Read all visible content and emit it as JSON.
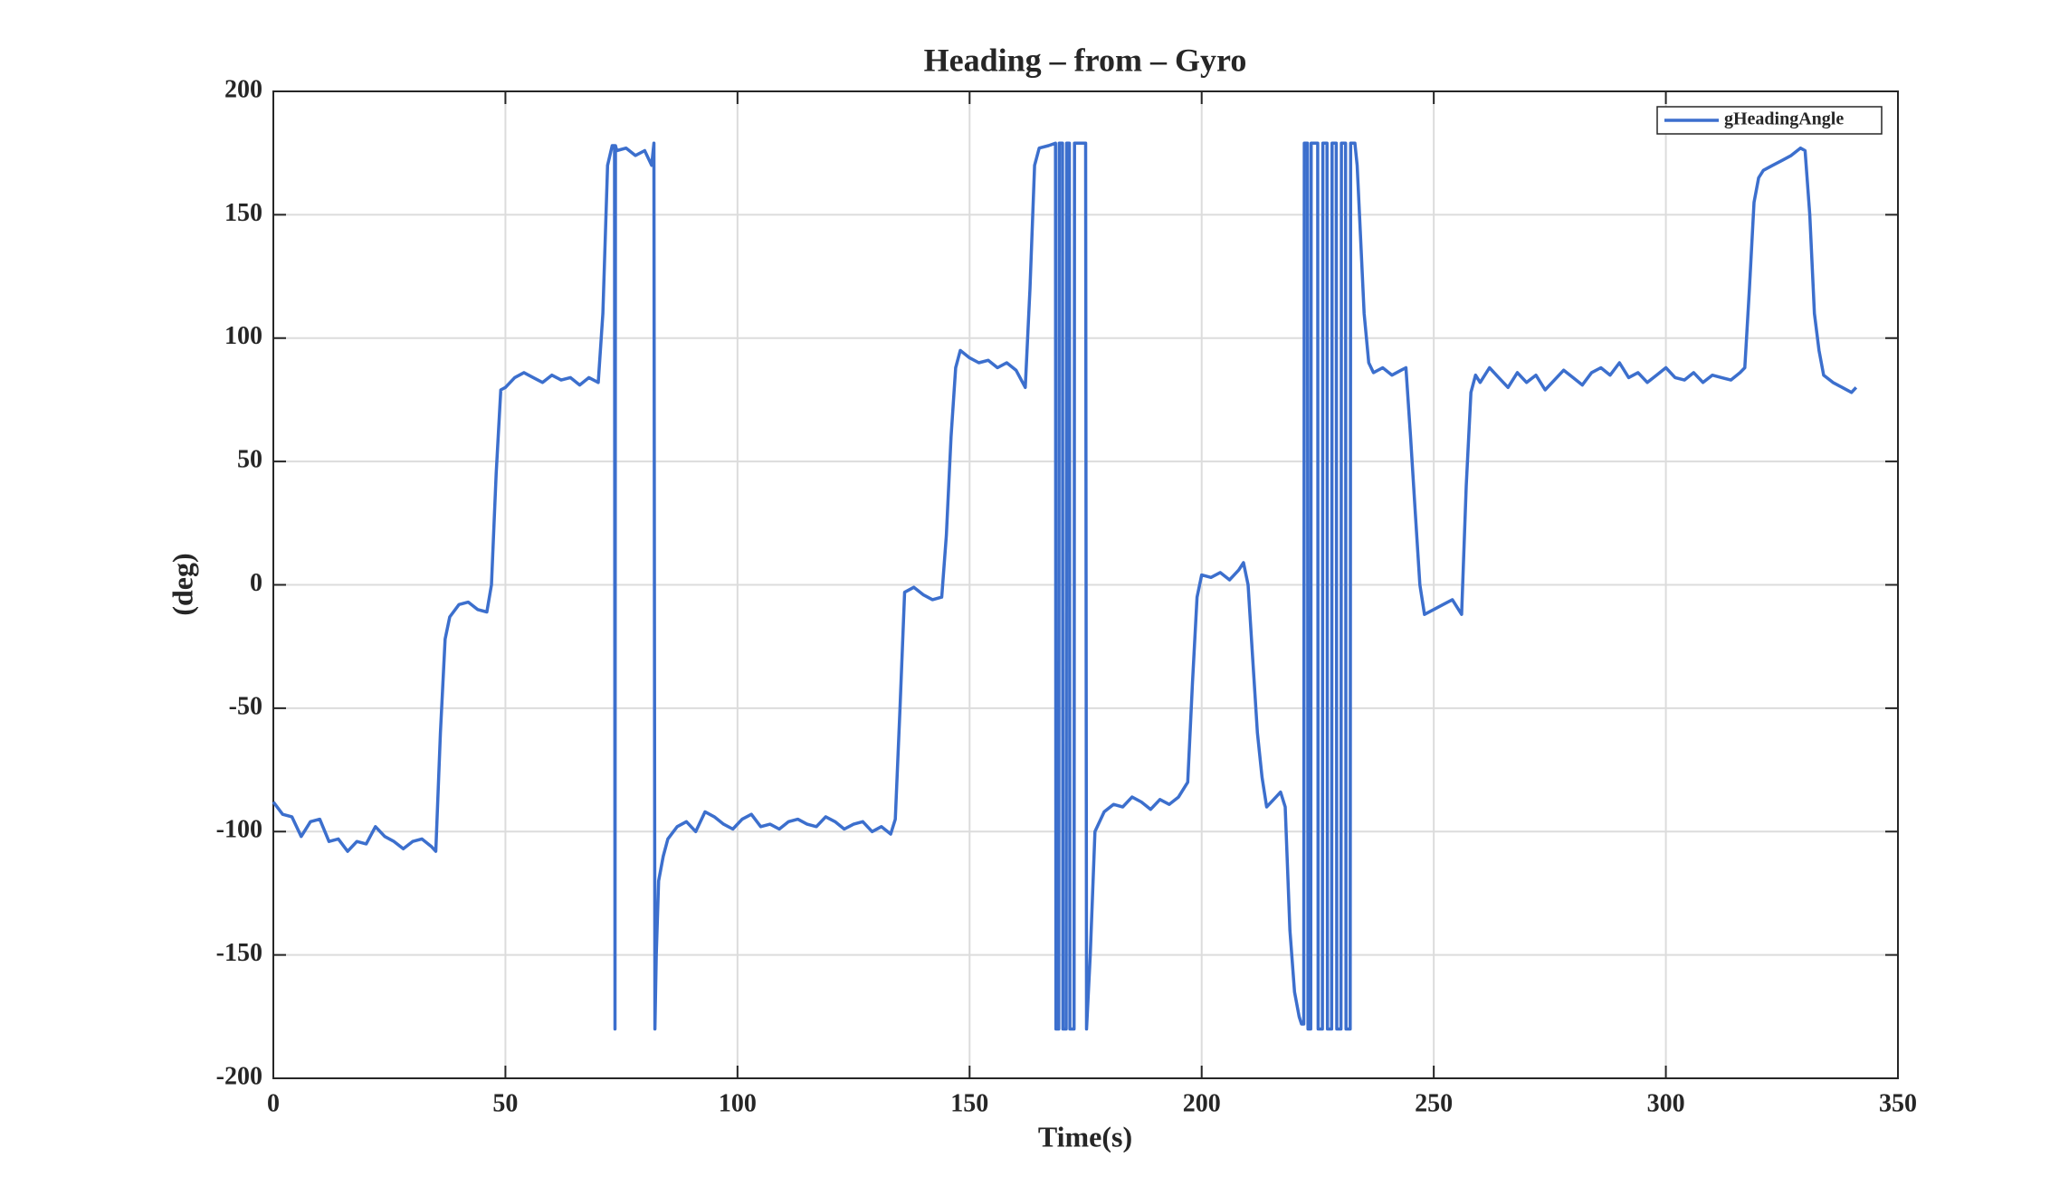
{
  "chart_data": {
    "type": "line",
    "title": "Heading – from – Gyro",
    "xlabel": "Time(s)",
    "ylabel": "(deg)",
    "xlim": [
      0,
      350
    ],
    "xticks": [
      0,
      50,
      100,
      150,
      200,
      250,
      300,
      350
    ],
    "ylim": [
      -200,
      200
    ],
    "yticks": [
      -200,
      -150,
      -100,
      -50,
      0,
      50,
      100,
      150,
      200
    ],
    "grid": true,
    "legend": "upper-right",
    "x": [
      0,
      2,
      4,
      6,
      8,
      10,
      12,
      14,
      16,
      18,
      20,
      22,
      24,
      26,
      28,
      30,
      32,
      34,
      35,
      36,
      37,
      38,
      40,
      42,
      44,
      46,
      47,
      48,
      49,
      50,
      52,
      54,
      56,
      58,
      60,
      62,
      64,
      66,
      68,
      70,
      71,
      72,
      73,
      73.5,
      73.6,
      73.7,
      74,
      76,
      78,
      80,
      81.5,
      82,
      82.2,
      82.5,
      83,
      84,
      85,
      87,
      89,
      91,
      93,
      95,
      97,
      99,
      101,
      103,
      105,
      107,
      109,
      111,
      113,
      115,
      117,
      119,
      121,
      123,
      125,
      127,
      129,
      131,
      133,
      134,
      135,
      136,
      138,
      140,
      142,
      144,
      145,
      146,
      147,
      148,
      150,
      152,
      154,
      156,
      158,
      160,
      162,
      163,
      164,
      165,
      167,
      168.5,
      168.6,
      169.2,
      169.3,
      170,
      170.1,
      170.8,
      170.9,
      171.5,
      171.6,
      172.5,
      172.6,
      173.5,
      174.5,
      175,
      175.2,
      176,
      177,
      179,
      181,
      183,
      185,
      187,
      189,
      191,
      193,
      195,
      197,
      198,
      199,
      200,
      202,
      204,
      206,
      208,
      209,
      210,
      211,
      212,
      213,
      214,
      216,
      217,
      218,
      219,
      220,
      221,
      221.5,
      222,
      222.1,
      222.8,
      222.9,
      223.5,
      223.6,
      224,
      225,
      225.1,
      226,
      226.1,
      227,
      227.1,
      228,
      228.1,
      229,
      229.1,
      230,
      230.1,
      231,
      231.1,
      232,
      232.1,
      233,
      233.5,
      234,
      235,
      236,
      237,
      239,
      241,
      243,
      244,
      245,
      246,
      247,
      248,
      250,
      252,
      254,
      256,
      257,
      258,
      259,
      260,
      262,
      264,
      266,
      268,
      270,
      272,
      274,
      276,
      278,
      280,
      282,
      284,
      286,
      288,
      290,
      292,
      294,
      296,
      298,
      300,
      302,
      304,
      306,
      308,
      310,
      312,
      314,
      316,
      317,
      318,
      319,
      320,
      321,
      323,
      325,
      327,
      329,
      330,
      331,
      332,
      333,
      334,
      336,
      338,
      340,
      341
    ],
    "series": [
      {
        "name": "gHeadingAngle",
        "color": "#3c6fcd",
        "values": [
          -88,
          -93,
          -94,
          -102,
          -96,
          -95,
          -104,
          -103,
          -108,
          -104,
          -105,
          -98,
          -102,
          -104,
          -107,
          -104,
          -103,
          -106,
          -108,
          -60,
          -22,
          -13,
          -8,
          -7,
          -10,
          -11,
          0,
          45,
          79,
          80,
          84,
          86,
          84,
          82,
          85,
          83,
          84,
          81,
          84,
          82,
          110,
          170,
          178,
          178,
          -180,
          178,
          176,
          177,
          174,
          176,
          170,
          179,
          -180,
          -150,
          -120,
          -110,
          -103,
          -98,
          -96,
          -100,
          -92,
          -94,
          -97,
          -99,
          -95,
          -93,
          -98,
          -97,
          -99,
          -96,
          -95,
          -97,
          -98,
          -94,
          -96,
          -99,
          -97,
          -96,
          -100,
          -98,
          -101,
          -95,
          -50,
          -3,
          -1,
          -4,
          -6,
          -5,
          20,
          60,
          88,
          95,
          92,
          90,
          91,
          88,
          90,
          87,
          80,
          120,
          170,
          177,
          178,
          179,
          -180,
          -180,
          179,
          179,
          -180,
          -180,
          179,
          179,
          -180,
          -180,
          179,
          179,
          179,
          179,
          -180,
          -150,
          -100,
          -92,
          -89,
          -90,
          -86,
          -88,
          -91,
          -87,
          -89,
          -86,
          -80,
          -40,
          -5,
          4,
          3,
          5,
          2,
          6,
          9,
          0,
          -30,
          -60,
          -78,
          -90,
          -86,
          -84,
          -90,
          -140,
          -165,
          -175,
          -178,
          -178,
          179,
          179,
          -180,
          -180,
          179,
          179,
          179,
          -180,
          -180,
          179,
          179,
          -180,
          -180,
          179,
          179,
          -180,
          -180,
          179,
          179,
          -180,
          -180,
          179,
          179,
          170,
          150,
          110,
          90,
          86,
          88,
          85,
          87,
          88,
          60,
          30,
          0,
          -12,
          -10,
          -8,
          -6,
          -12,
          40,
          78,
          85,
          82,
          88,
          84,
          80,
          86,
          82,
          85,
          79,
          83,
          87,
          84,
          81,
          86,
          88,
          85,
          90,
          84,
          86,
          82,
          85,
          88,
          84,
          83,
          86,
          82,
          85,
          84,
          83,
          86,
          88,
          120,
          155,
          165,
          168,
          170,
          172,
          174,
          177,
          176,
          150,
          110,
          95,
          85,
          82,
          80,
          78,
          80
        ]
      }
    ]
  }
}
